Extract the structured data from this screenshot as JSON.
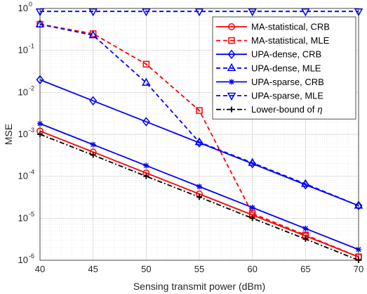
{
  "chart_data": {
    "type": "line",
    "title": "",
    "xlabel": "Sensing transmit power (dBm)",
    "ylabel": "MSE",
    "x": [
      40,
      45,
      50,
      55,
      60,
      65,
      70
    ],
    "x_ticks": [
      "40",
      "45",
      "50",
      "55",
      "60",
      "65",
      "70"
    ],
    "xlim": [
      40,
      70
    ],
    "ylim": [
      1e-06,
      1
    ],
    "yscale": "log",
    "y_ticks": [
      {
        "value": 1e-06,
        "base": "10",
        "exp": "-6"
      },
      {
        "value": 1e-05,
        "base": "10",
        "exp": "-5"
      },
      {
        "value": 0.0001,
        "base": "10",
        "exp": "-4"
      },
      {
        "value": 0.001,
        "base": "10",
        "exp": "-3"
      },
      {
        "value": 0.01,
        "base": "10",
        "exp": "-2"
      },
      {
        "value": 0.1,
        "base": "10",
        "exp": "-1"
      },
      {
        "value": 1,
        "base": "10",
        "exp": "0"
      }
    ],
    "grid": true,
    "legend_position": "top-right",
    "series": [
      {
        "name": "MA-statistical, CRB",
        "color": "#ff0000",
        "dash": "solid",
        "marker": "circle",
        "values": [
          0.0012,
          0.00038,
          0.00012,
          3.8e-05,
          1.2e-05,
          3.8e-06,
          1.2e-06
        ]
      },
      {
        "name": "MA-statistical, MLE",
        "color": "#ff0000",
        "dash": "dashed",
        "marker": "square",
        "values": [
          0.42,
          0.25,
          0.047,
          0.0037,
          1.3e-05,
          4e-06,
          1.2e-06
        ]
      },
      {
        "name": "UPA-dense, CRB",
        "color": "#0000ff",
        "dash": "solid",
        "marker": "diamond",
        "values": [
          0.02,
          0.0063,
          0.002,
          0.00063,
          0.0002,
          6.3e-05,
          2e-05
        ]
      },
      {
        "name": "UPA-dense, MLE",
        "color": "#0000ff",
        "dash": "dashed",
        "marker": "triangle-up",
        "values": [
          0.42,
          0.23,
          0.017,
          0.00065,
          0.00021,
          6.6e-05,
          2e-05
        ]
      },
      {
        "name": "UPA-sparse, CRB",
        "color": "#0000ff",
        "dash": "solid",
        "marker": "asterisk",
        "values": [
          0.0018,
          0.00057,
          0.00018,
          5.7e-05,
          1.8e-05,
          5.7e-06,
          1.8e-06
        ]
      },
      {
        "name": "UPA-sparse, MLE",
        "color": "#0000ff",
        "dash": "dashed",
        "marker": "triangle-down",
        "values": [
          0.85,
          0.85,
          0.85,
          0.85,
          0.85,
          0.85,
          0.85
        ]
      },
      {
        "name": "Lower-bound of",
        "symbol": "η",
        "color": "#000000",
        "dash": "dashdot",
        "marker": "plus",
        "values": [
          0.001,
          0.00032,
          0.0001,
          3.2e-05,
          1e-05,
          3.2e-06,
          1e-06
        ]
      }
    ]
  }
}
